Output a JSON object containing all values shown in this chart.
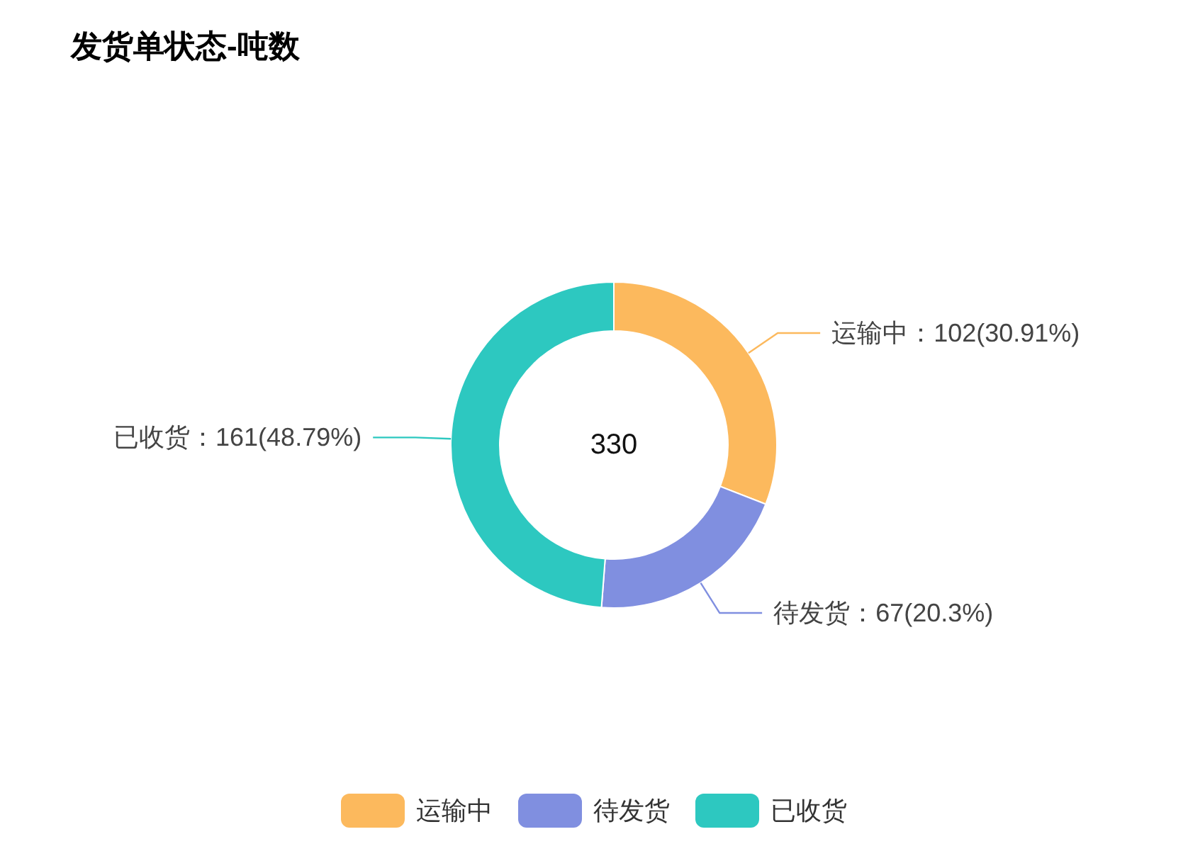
{
  "chart_data": {
    "type": "donut",
    "title": "发货单状态-吨数",
    "categories": [
      "运输中",
      "待发货",
      "已收货"
    ],
    "values": [
      102,
      67,
      161
    ],
    "colors": [
      "#fcb95d",
      "#808fe0",
      "#2dc8c0"
    ],
    "value_labels": [
      "运输中：102(30.91%)",
      "待发货：67(20.3%)",
      "已收货：161(48.79%)"
    ],
    "annotations": [
      "330"
    ],
    "legend": "bottom"
  }
}
